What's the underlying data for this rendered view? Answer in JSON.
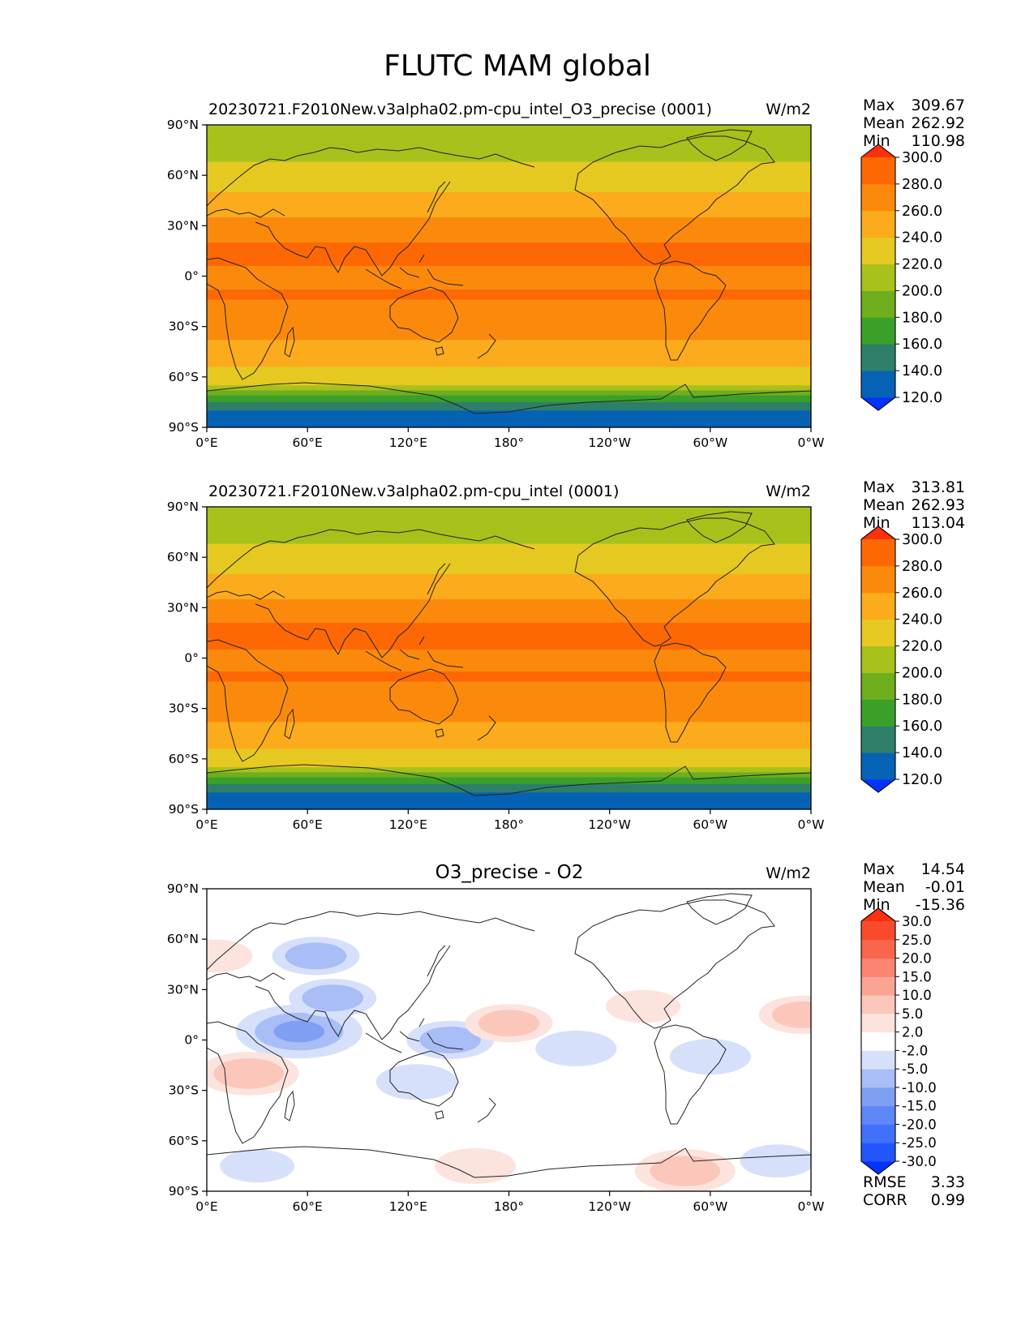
{
  "figure_title": "FLUTC MAM global",
  "chart_data": [
    {
      "type": "heatmap",
      "title": "20230721.F2010New.v3alpha02.pm-cpu_intel_O3_precise (0001)",
      "units": "W/m2",
      "x_tick_labels": [
        "0°E",
        "60°E",
        "120°E",
        "180°",
        "120°W",
        "60°W",
        "0°W"
      ],
      "y_tick_labels": [
        "90°N",
        "60°N",
        "30°N",
        "0°",
        "30°S",
        "60°S",
        "90°S"
      ],
      "xlim": [
        0,
        360
      ],
      "ylim": [
        -90,
        90
      ],
      "stats": {
        "max_label": "Max",
        "max": "309.67",
        "mean_label": "Mean",
        "mean": "262.92",
        "min_label": "Min",
        "min": "110.98"
      },
      "colorbar": {
        "levels": [
          "120.0",
          "140.0",
          "160.0",
          "180.0",
          "200.0",
          "220.0",
          "240.0",
          "260.0",
          "280.0",
          "300.0"
        ],
        "colors": [
          "#0432ff",
          "#0562b4",
          "#2e7f6a",
          "#3aa02a",
          "#6fae1c",
          "#a9c11b",
          "#e6c921",
          "#fbab1c",
          "#fb8a0c",
          "#fd6804",
          "#fd2f0c"
        ],
        "extend": "both"
      },
      "zonal_profile": {
        "lat": [
          90,
          75,
          60,
          50,
          40,
          30,
          20,
          10,
          0,
          -10,
          -20,
          -30,
          -40,
          -50,
          -60,
          -65,
          -70,
          -75,
          -80,
          -90
        ],
        "value": [
          205,
          212,
          228,
          240,
          253,
          268,
          280,
          286,
          272,
          282,
          277,
          270,
          258,
          245,
          232,
          220,
          185,
          160,
          138,
          135
        ]
      }
    },
    {
      "type": "heatmap",
      "title": "20230721.F2010New.v3alpha02.pm-cpu_intel (0001)",
      "units": "W/m2",
      "x_tick_labels": [
        "0°E",
        "60°E",
        "120°E",
        "180°",
        "120°W",
        "60°W",
        "0°W"
      ],
      "y_tick_labels": [
        "90°N",
        "60°N",
        "30°N",
        "0°",
        "30°S",
        "60°S",
        "90°S"
      ],
      "xlim": [
        0,
        360
      ],
      "ylim": [
        -90,
        90
      ],
      "stats": {
        "max_label": "Max",
        "max": "313.81",
        "mean_label": "Mean",
        "mean": "262.93",
        "min_label": "Min",
        "min": "113.04"
      },
      "colorbar": {
        "levels": [
          "120.0",
          "140.0",
          "160.0",
          "180.0",
          "200.0",
          "220.0",
          "240.0",
          "260.0",
          "280.0",
          "300.0"
        ],
        "colors": [
          "#0432ff",
          "#0562b4",
          "#2e7f6a",
          "#3aa02a",
          "#6fae1c",
          "#a9c11b",
          "#e6c921",
          "#fbab1c",
          "#fb8a0c",
          "#fd6804",
          "#fd2f0c"
        ],
        "extend": "both"
      },
      "zonal_profile": {
        "lat": [
          90,
          75,
          60,
          50,
          40,
          30,
          20,
          10,
          0,
          -10,
          -20,
          -30,
          -40,
          -50,
          -60,
          -65,
          -70,
          -75,
          -80,
          -90
        ],
        "value": [
          205,
          212,
          228,
          240,
          253,
          268,
          281,
          286,
          273,
          282,
          277,
          270,
          258,
          245,
          232,
          220,
          185,
          160,
          138,
          135
        ]
      }
    },
    {
      "type": "heatmap",
      "title": "O3_precise - O2",
      "units": "W/m2",
      "x_tick_labels": [
        "0°E",
        "60°E",
        "120°E",
        "180°",
        "120°W",
        "60°W",
        "0°W"
      ],
      "y_tick_labels": [
        "90°N",
        "60°N",
        "30°N",
        "0°",
        "30°S",
        "60°S",
        "90°S"
      ],
      "xlim": [
        0,
        360
      ],
      "ylim": [
        -90,
        90
      ],
      "stats": {
        "max_label": "Max",
        "max": "14.54",
        "mean_label": "Mean",
        "mean": "-0.01",
        "min_label": "Min",
        "min": "-15.36"
      },
      "rmse_label": "RMSE",
      "rmse": "3.33",
      "corr_label": "CORR",
      "corr": "0.99",
      "colorbar": {
        "levels": [
          "-30.0",
          "-25.0",
          "-20.0",
          "-15.0",
          "-10.0",
          "-5.0",
          "-2.0",
          "2.0",
          "5.0",
          "10.0",
          "15.0",
          "20.0",
          "25.0",
          "30.0"
        ],
        "colors": [
          "#0432ff",
          "#2156fe",
          "#4170fb",
          "#5d86f6",
          "#7f9ff4",
          "#a9bdf6",
          "#d7e0fb",
          "#ffffff",
          "#fde3dd",
          "#fcc7bb",
          "#fba493",
          "#fa8570",
          "#f8664c",
          "#f94a2c",
          "#fd2f0c"
        ],
        "extend": "both"
      },
      "anomalies": [
        {
          "lon": 55,
          "lat": 5,
          "value": -12
        },
        {
          "lon": 75,
          "lat": 25,
          "value": -6
        },
        {
          "lon": 65,
          "lat": 50,
          "value": -6
        },
        {
          "lon": 145,
          "lat": 0,
          "value": -6
        },
        {
          "lon": 125,
          "lat": -25,
          "value": -5
        },
        {
          "lon": 220,
          "lat": -5,
          "value": -5
        },
        {
          "lon": 300,
          "lat": -10,
          "value": -5
        },
        {
          "lon": 30,
          "lat": -75,
          "value": -4
        },
        {
          "lon": 340,
          "lat": -72,
          "value": -4
        },
        {
          "lon": 25,
          "lat": -20,
          "value": 8
        },
        {
          "lon": 180,
          "lat": 10,
          "value": 6
        },
        {
          "lon": 355,
          "lat": 15,
          "value": 6
        },
        {
          "lon": 285,
          "lat": -78,
          "value": 8
        },
        {
          "lon": 160,
          "lat": -75,
          "value": 5
        },
        {
          "lon": 5,
          "lat": 50,
          "value": 4
        },
        {
          "lon": 260,
          "lat": 20,
          "value": 4
        }
      ]
    }
  ]
}
